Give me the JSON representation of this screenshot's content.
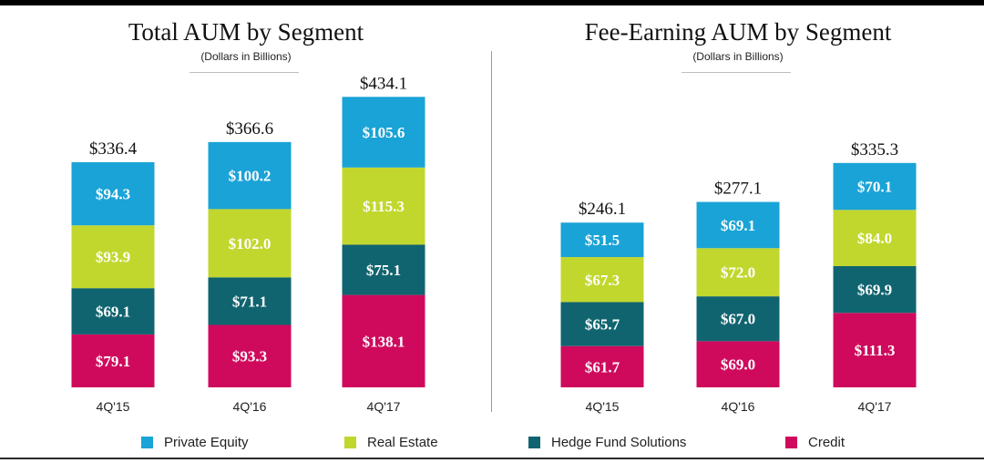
{
  "colors": {
    "private_equity": "#1aa3d6",
    "real_estate": "#c1d72e",
    "hedge_fund_solutions": "#10646f",
    "credit": "#cf0a5d"
  },
  "chart_data": [
    {
      "type": "bar",
      "stacked": true,
      "title": "Total AUM by Segment",
      "subtitle": "(Dollars in Billions)",
      "categories": [
        "4Q'15",
        "4Q'16",
        "4Q'17"
      ],
      "series": [
        {
          "name": "Credit",
          "key": "credit",
          "values": [
            79.1,
            93.3,
            138.1
          ],
          "labels": [
            "$79.1",
            "$93.3",
            "$138.1"
          ]
        },
        {
          "name": "Hedge Fund Solutions",
          "key": "hedge_fund_solutions",
          "values": [
            69.1,
            71.1,
            75.1
          ],
          "labels": [
            "$69.1",
            "$71.1",
            "$75.1"
          ]
        },
        {
          "name": "Real Estate",
          "key": "real_estate",
          "values": [
            93.9,
            102.0,
            115.3
          ],
          "labels": [
            "$93.9",
            "$102.0",
            "$115.3"
          ]
        },
        {
          "name": "Private Equity",
          "key": "private_equity",
          "values": [
            94.3,
            100.2,
            105.6
          ],
          "labels": [
            "$94.3",
            "$100.2",
            "$105.6"
          ]
        }
      ],
      "totals": [
        336.4,
        366.6,
        434.1
      ],
      "total_labels": [
        "$336.4",
        "$366.6",
        "$434.1"
      ],
      "ylim": [
        0,
        440
      ],
      "grid": false,
      "legend": "bottom"
    },
    {
      "type": "bar",
      "stacked": true,
      "title": "Fee-Earning AUM by Segment",
      "subtitle": "(Dollars in Billions)",
      "categories": [
        "4Q'15",
        "4Q'16",
        "4Q'17"
      ],
      "series": [
        {
          "name": "Credit",
          "key": "credit",
          "values": [
            61.7,
            69.0,
            111.3
          ],
          "labels": [
            "$61.7",
            "$69.0",
            "$111.3"
          ]
        },
        {
          "name": "Hedge Fund Solutions",
          "key": "hedge_fund_solutions",
          "values": [
            65.7,
            67.0,
            69.9
          ],
          "labels": [
            "$65.7",
            "$67.0",
            "$69.9"
          ]
        },
        {
          "name": "Real Estate",
          "key": "real_estate",
          "values": [
            67.3,
            72.0,
            84.0
          ],
          "labels": [
            "$67.3",
            "$72.0",
            "$84.0"
          ]
        },
        {
          "name": "Private Equity",
          "key": "private_equity",
          "values": [
            51.5,
            69.1,
            70.1
          ],
          "labels": [
            "$51.5",
            "$69.1",
            "$70.1"
          ]
        }
      ],
      "totals": [
        246.1,
        277.1,
        335.3
      ],
      "total_labels": [
        "$246.1",
        "$277.1",
        "$335.3"
      ],
      "ylim": [
        0,
        340
      ],
      "grid": false,
      "legend": "bottom"
    }
  ],
  "legend": [
    {
      "label": "Private Equity",
      "key": "private_equity"
    },
    {
      "label": "Real Estate",
      "key": "real_estate"
    },
    {
      "label": "Hedge Fund Solutions",
      "key": "hedge_fund_solutions"
    },
    {
      "label": "Credit",
      "key": "credit"
    }
  ]
}
